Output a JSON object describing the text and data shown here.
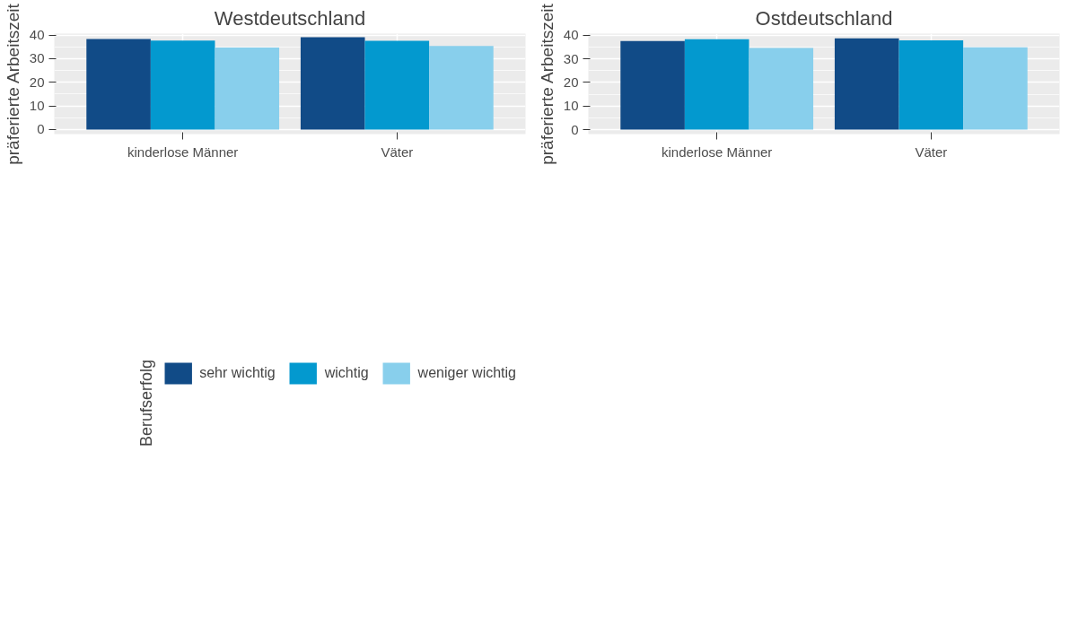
{
  "chart_data": [
    {
      "type": "bar",
      "title": "Westdeutschland",
      "ylabel": "präferierte Arbeitszeit",
      "categories": [
        "kinderlose Männer",
        "Väter"
      ],
      "legend_title": "Berufserfolg",
      "legend": "bottom",
      "grid": true,
      "ylim": [
        -1.9,
        40.6
      ],
      "yticks": [
        0,
        10,
        20,
        30,
        40
      ],
      "series": [
        {
          "name": "sehr wichtig",
          "color": "#114b87",
          "values": [
            38.3,
            39.1
          ]
        },
        {
          "name": "wichtig",
          "color": "#0399cf",
          "values": [
            37.7,
            37.6
          ]
        },
        {
          "name": "weniger wichtig",
          "color": "#88cfec",
          "values": [
            34.7,
            35.4
          ]
        }
      ]
    },
    {
      "type": "bar",
      "title": "Ostdeutschland",
      "ylabel": "präferierte Arbeitszeit",
      "categories": [
        "kinderlose Männer",
        "Väter"
      ],
      "grid": true,
      "ylim": [
        -1.9,
        40.7
      ],
      "yticks": [
        0,
        10,
        20,
        30,
        40
      ],
      "series": [
        {
          "color": "#114b87",
          "values": [
            37.6,
            38.7
          ]
        },
        {
          "color": "#0399cf",
          "values": [
            38.3,
            37.8
          ]
        },
        {
          "color": "#88cfec",
          "values": [
            34.6,
            34.9
          ]
        }
      ]
    }
  ]
}
